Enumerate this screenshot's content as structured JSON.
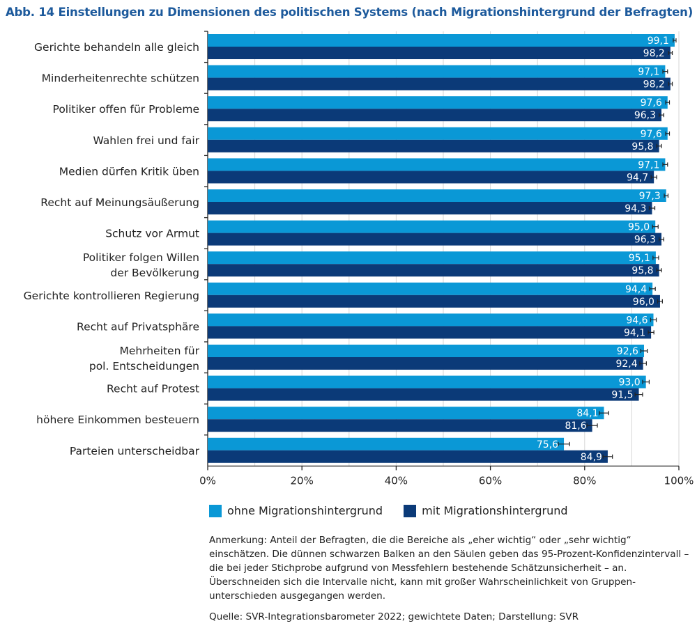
{
  "title": "Abb. 14 Einstellungen zu Dimensionen des politischen Systems (nach Migrationshintergrund der Befragten)",
  "chart_data": {
    "type": "bar",
    "orientation": "horizontal",
    "title": "Abb. 14 Einstellungen zu Dimensionen des politischen Systems (nach Migrationshintergrund der Befragten)",
    "categories": [
      [
        "Gerichte behandeln alle gleich"
      ],
      [
        "Minderheitenrechte schützen"
      ],
      [
        "Politiker offen für Probleme"
      ],
      [
        "Wahlen frei und fair"
      ],
      [
        "Medien dürfen Kritik üben"
      ],
      [
        "Recht auf Meinungsäußerung"
      ],
      [
        "Schutz vor Armut"
      ],
      [
        "Politiker folgen Willen",
        "der Bevölkerung"
      ],
      [
        "Gerichte kontrollieren Regierung"
      ],
      [
        "Recht auf Privatsphäre"
      ],
      [
        "Mehrheiten für",
        "pol. Entscheidungen"
      ],
      [
        "Recht auf Protest"
      ],
      [
        "höhere Einkommen besteuern"
      ],
      [
        "Parteien unterscheidbar"
      ]
    ],
    "series": [
      {
        "name": "ohne Migrationshintergrund",
        "color": "#0a98d6",
        "values": [
          99.1,
          97.1,
          97.6,
          97.6,
          97.1,
          97.3,
          95.0,
          95.1,
          94.4,
          94.6,
          92.6,
          93.0,
          84.1,
          75.6
        ],
        "labels": [
          "99,1",
          "97,1",
          "97,6",
          "97,6",
          "97,1",
          "97,3",
          "95,0",
          "95,1",
          "94,4",
          "94,6",
          "92,6",
          "93,0",
          "84,1",
          "75,6"
        ],
        "ci_halfwidth": [
          0.3,
          0.5,
          0.4,
          0.4,
          0.5,
          0.4,
          0.6,
          0.6,
          0.6,
          0.6,
          0.7,
          0.7,
          1.0,
          1.2
        ]
      },
      {
        "name": "mit Migrationshintergrund",
        "color": "#0b3a78",
        "values": [
          98.2,
          98.2,
          96.3,
          95.8,
          94.7,
          94.3,
          96.3,
          95.8,
          96.0,
          94.1,
          92.4,
          91.5,
          81.6,
          84.9
        ],
        "labels": [
          "98,2",
          "98,2",
          "96,3",
          "95,8",
          "94,7",
          "94,3",
          "96,3",
          "95,8",
          "96,0",
          "94,1",
          "92,4",
          "91,5",
          "81,6",
          "84,9"
        ],
        "ci_halfwidth": [
          0.4,
          0.4,
          0.5,
          0.5,
          0.6,
          0.6,
          0.5,
          0.5,
          0.5,
          0.6,
          0.7,
          0.8,
          1.1,
          1.0
        ]
      }
    ],
    "xlim": [
      0,
      100
    ],
    "xticks": [
      "0%",
      "20%",
      "40%",
      "60%",
      "80%",
      "100%"
    ],
    "grid": true,
    "legend": "bottom"
  },
  "legend": [
    "ohne Migrationshintergrund",
    "mit Migrationshintergrund"
  ],
  "note": "Anmerkung: Anteil der Befragten, die die Bereiche als „eher wichtig“ oder „sehr wichtig“ einschätzen. Die dünnen schwarzen Balken an den Säulen geben das 95-Prozent-Konfidenz­intervall – die bei jeder Stichprobe aufgrund von Messfehlern bestehende Schätzunsicherheit – an. Überschneiden sich die Intervalle nicht, kann mit großer Wahrscheinlichkeit von Gruppen­unterschieden ausgegangen werden.",
  "source": "Quelle: SVR-Integrationsbarometer 2022; gewichtete Daten; Darstellung: SVR"
}
